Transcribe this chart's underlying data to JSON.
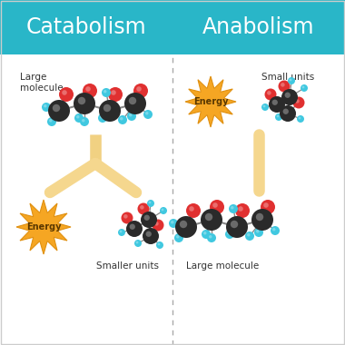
{
  "bg_color": "#ffffff",
  "header_color": "#29b6c8",
  "header_text_color": "#ffffff",
  "divider_color": "#aaaaaa",
  "arrow_color": "#f5d78e",
  "arrow_edge_color": "#e8c060",
  "catabolism_title": "Catabolism",
  "anabolism_title": "Anabolism",
  "label_large_molecule": "Large\nmolecule",
  "label_small_units_cata": "Smaller units",
  "label_small_units_ana": "Small units",
  "label_large_molecule_ana": "Large molecule",
  "label_energy": "Energy",
  "black_atom": "#2a2a2a",
  "red_atom": "#e03030",
  "cyan_atom": "#40c8e0",
  "bond_color": "#888888"
}
